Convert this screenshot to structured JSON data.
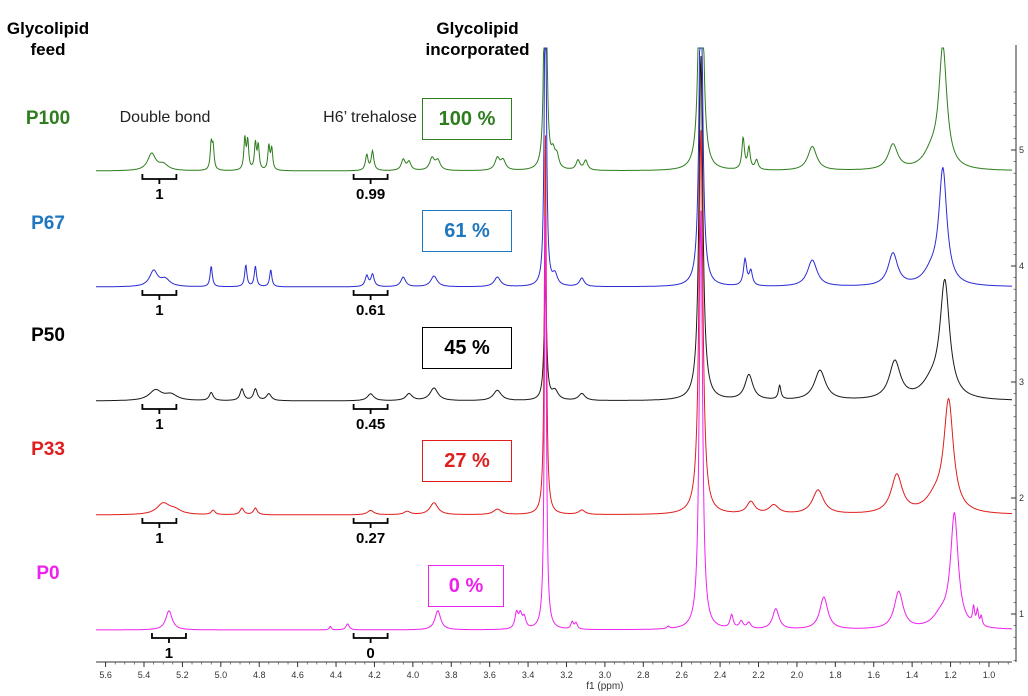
{
  "headers": {
    "feed": "Glycolipid feed",
    "incorporated": "Glycolipid incorporated"
  },
  "annotations": {
    "double_bond": "Double bond",
    "h6_trehalose": "H6’ trehalose"
  },
  "chart_data": {
    "type": "line",
    "title": "",
    "xlabel": "f1 (ppm)",
    "ylabel": "",
    "xlim": [
      5.65,
      0.88
    ],
    "x_reversed": true,
    "x_ticks": [
      "5.6",
      "5.4",
      "5.2",
      "5.0",
      "4.8",
      "4.6",
      "4.4",
      "4.2",
      "4.0",
      "3.8",
      "3.6",
      "3.4",
      "3.2",
      "3.0",
      "2.8",
      "2.6",
      "2.4",
      "2.2",
      "2.0",
      "1.8",
      "1.6",
      "1.4",
      "1.2",
      "1.0"
    ],
    "y_ticks": [
      "1",
      "2",
      "3",
      "4",
      "5"
    ],
    "grid": false,
    "series": [
      {
        "name": "P100",
        "color": "#2e7d1e",
        "incorporated": "100 %",
        "integral_double_bond": "1",
        "integral_h6": "0.99",
        "peaks": [
          [
            5.36,
            0.14,
            0.025
          ],
          [
            5.3,
            0.05,
            0.03
          ],
          [
            5.05,
            0.22,
            0.006
          ],
          [
            5.04,
            0.18,
            0.006
          ],
          [
            4.875,
            0.26,
            0.006
          ],
          [
            4.86,
            0.24,
            0.006
          ],
          [
            4.82,
            0.22,
            0.006
          ],
          [
            4.805,
            0.2,
            0.006
          ],
          [
            4.75,
            0.2,
            0.006
          ],
          [
            4.735,
            0.18,
            0.006
          ],
          [
            4.24,
            0.13,
            0.008
          ],
          [
            4.21,
            0.16,
            0.008
          ],
          [
            4.05,
            0.09,
            0.012
          ],
          [
            4.02,
            0.07,
            0.012
          ],
          [
            3.9,
            0.1,
            0.015
          ],
          [
            3.87,
            0.08,
            0.015
          ],
          [
            3.56,
            0.1,
            0.015
          ],
          [
            3.53,
            0.08,
            0.015
          ],
          [
            3.31,
            3.5,
            0.006
          ],
          [
            3.27,
            0.12,
            0.012
          ],
          [
            3.25,
            0.1,
            0.012
          ],
          [
            3.14,
            0.08,
            0.012
          ],
          [
            3.1,
            0.08,
            0.012
          ],
          [
            2.5,
            3.5,
            0.01
          ],
          [
            2.28,
            0.26,
            0.008
          ],
          [
            2.25,
            0.18,
            0.008
          ],
          [
            2.21,
            0.08,
            0.01
          ],
          [
            1.92,
            0.2,
            0.028
          ],
          [
            1.5,
            0.21,
            0.03
          ],
          [
            1.24,
            1.0,
            0.025
          ],
          [
            1.3,
            0.12,
            0.05
          ]
        ]
      },
      {
        "name": "P67",
        "color": "#2b2bd4",
        "incorporated": "61 %",
        "integral_double_bond": "1",
        "integral_h6": "0.61",
        "peaks": [
          [
            5.35,
            0.13,
            0.025
          ],
          [
            5.29,
            0.06,
            0.03
          ],
          [
            5.05,
            0.17,
            0.007
          ],
          [
            4.87,
            0.18,
            0.007
          ],
          [
            4.82,
            0.17,
            0.007
          ],
          [
            4.74,
            0.14,
            0.007
          ],
          [
            4.24,
            0.09,
            0.01
          ],
          [
            4.21,
            0.1,
            0.01
          ],
          [
            4.05,
            0.08,
            0.015
          ],
          [
            3.89,
            0.09,
            0.02
          ],
          [
            3.56,
            0.08,
            0.02
          ],
          [
            3.31,
            3.0,
            0.006
          ],
          [
            3.26,
            0.09,
            0.015
          ],
          [
            3.12,
            0.07,
            0.015
          ],
          [
            2.5,
            3.0,
            0.01
          ],
          [
            2.27,
            0.22,
            0.01
          ],
          [
            2.24,
            0.12,
            0.01
          ],
          [
            1.92,
            0.22,
            0.03
          ],
          [
            1.5,
            0.27,
            0.03
          ],
          [
            1.24,
            0.95,
            0.025
          ],
          [
            1.3,
            0.1,
            0.05
          ]
        ]
      },
      {
        "name": "P50",
        "color": "#1a1a1a",
        "incorporated": "45 %",
        "integral_double_bond": "1",
        "integral_h6": "0.45",
        "peaks": [
          [
            5.34,
            0.09,
            0.04
          ],
          [
            5.26,
            0.05,
            0.04
          ],
          [
            5.05,
            0.07,
            0.012
          ],
          [
            4.89,
            0.1,
            0.012
          ],
          [
            4.82,
            0.1,
            0.012
          ],
          [
            4.75,
            0.06,
            0.015
          ],
          [
            4.22,
            0.06,
            0.02
          ],
          [
            4.02,
            0.06,
            0.02
          ],
          [
            3.89,
            0.11,
            0.025
          ],
          [
            3.56,
            0.09,
            0.025
          ],
          [
            3.31,
            1.0,
            0.008
          ],
          [
            3.26,
            0.08,
            0.02
          ],
          [
            3.12,
            0.06,
            0.02
          ],
          [
            2.5,
            3.0,
            0.012
          ],
          [
            2.25,
            0.22,
            0.025
          ],
          [
            2.09,
            0.12,
            0.008
          ],
          [
            1.88,
            0.26,
            0.035
          ],
          [
            1.49,
            0.33,
            0.035
          ],
          [
            1.23,
            1.0,
            0.03
          ],
          [
            1.3,
            0.12,
            0.06
          ]
        ]
      },
      {
        "name": "P33",
        "color": "#e01e1e",
        "incorporated": "27 %",
        "integral_double_bond": "1",
        "integral_h6": "0.27",
        "peaks": [
          [
            5.3,
            0.1,
            0.04
          ],
          [
            5.24,
            0.04,
            0.04
          ],
          [
            5.04,
            0.04,
            0.012
          ],
          [
            4.89,
            0.06,
            0.012
          ],
          [
            4.82,
            0.06,
            0.012
          ],
          [
            4.22,
            0.04,
            0.02
          ],
          [
            4.03,
            0.03,
            0.02
          ],
          [
            3.89,
            0.11,
            0.025
          ],
          [
            3.56,
            0.05,
            0.025
          ],
          [
            3.31,
            3.5,
            0.006
          ],
          [
            3.12,
            0.04,
            0.02
          ],
          [
            2.5,
            3.5,
            0.012
          ],
          [
            2.24,
            0.11,
            0.025
          ],
          [
            2.12,
            0.08,
            0.03
          ],
          [
            1.89,
            0.22,
            0.035
          ],
          [
            1.48,
            0.35,
            0.035
          ],
          [
            1.21,
            1.0,
            0.03
          ],
          [
            1.28,
            0.12,
            0.06
          ]
        ]
      },
      {
        "name": "P0",
        "color": "#ee22ee",
        "incorporated": "0 %",
        "integral_double_bond": "1",
        "integral_h6": "0",
        "peaks": [
          [
            5.27,
            0.16,
            0.02
          ],
          [
            4.43,
            0.03,
            0.006
          ],
          [
            4.34,
            0.05,
            0.01
          ],
          [
            3.87,
            0.16,
            0.018
          ],
          [
            3.46,
            0.13,
            0.01
          ],
          [
            3.44,
            0.11,
            0.01
          ],
          [
            3.42,
            0.09,
            0.01
          ],
          [
            3.31,
            3.5,
            0.006
          ],
          [
            3.17,
            0.06,
            0.008
          ],
          [
            3.15,
            0.05,
            0.008
          ],
          [
            2.67,
            0.02,
            0.008
          ],
          [
            2.5,
            3.5,
            0.01
          ],
          [
            2.34,
            0.11,
            0.01
          ],
          [
            2.29,
            0.06,
            0.012
          ],
          [
            2.25,
            0.05,
            0.012
          ],
          [
            2.11,
            0.17,
            0.02
          ],
          [
            1.86,
            0.27,
            0.025
          ],
          [
            1.47,
            0.31,
            0.028
          ],
          [
            1.18,
            0.94,
            0.024
          ],
          [
            1.08,
            0.14,
            0.006
          ],
          [
            1.06,
            0.12,
            0.006
          ],
          [
            1.04,
            0.08,
            0.006
          ],
          [
            1.25,
            0.1,
            0.05
          ]
        ]
      }
    ]
  }
}
